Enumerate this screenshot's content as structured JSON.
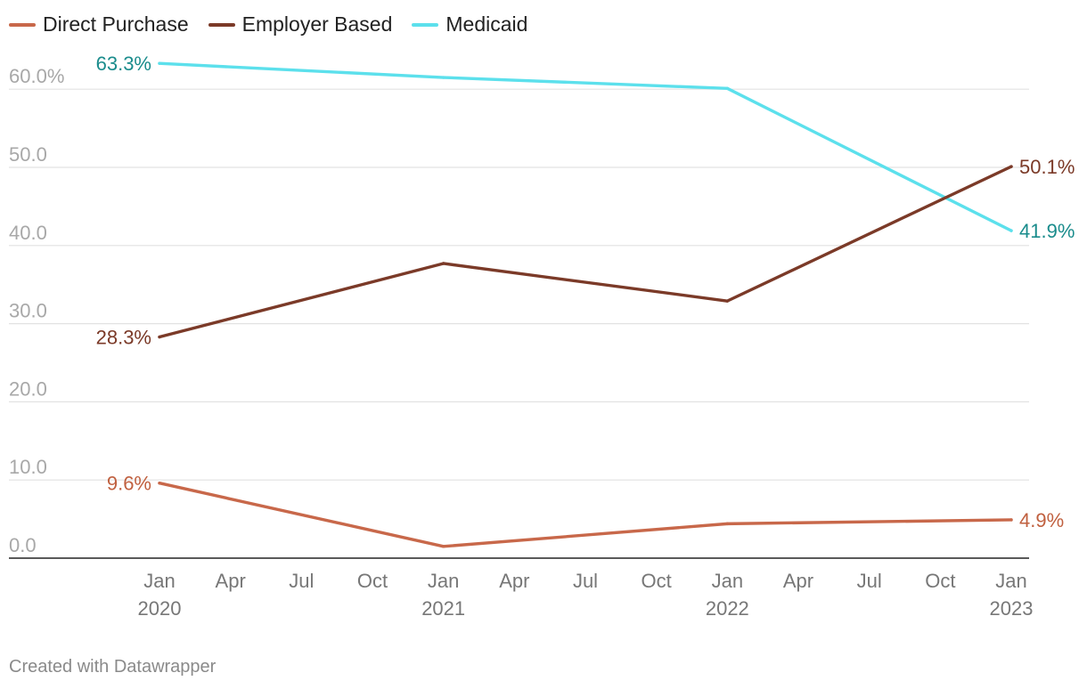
{
  "chart_data": {
    "type": "line",
    "title": "",
    "xlabel": "",
    "ylabel": "",
    "ylim": [
      0,
      65
    ],
    "y_ticks": [
      0,
      10,
      20,
      30,
      40,
      50,
      60
    ],
    "y_tick_labels": [
      "0.0",
      "10.0",
      "20.0",
      "30.0",
      "40.0",
      "50.0",
      "60.0%"
    ],
    "x": [
      2020,
      2021,
      2022,
      2023
    ],
    "x_tick_labels": [
      {
        "month": "Jan",
        "year": "2020"
      },
      {
        "month": "Apr",
        "year": ""
      },
      {
        "month": "Jul",
        "year": ""
      },
      {
        "month": "Oct",
        "year": ""
      },
      {
        "month": "Jan",
        "year": "2021"
      },
      {
        "month": "Apr",
        "year": ""
      },
      {
        "month": "Jul",
        "year": ""
      },
      {
        "month": "Oct",
        "year": ""
      },
      {
        "month": "Jan",
        "year": "2022"
      },
      {
        "month": "Apr",
        "year": ""
      },
      {
        "month": "Jul",
        "year": ""
      },
      {
        "month": "Oct",
        "year": ""
      },
      {
        "month": "Jan",
        "year": "2023"
      }
    ],
    "series": [
      {
        "name": "Direct Purchase",
        "color": "#c8684a",
        "label_color": "#c0603f",
        "values": [
          9.6,
          1.5,
          4.4,
          4.9
        ],
        "start_label": "9.6%",
        "end_label": "4.9%"
      },
      {
        "name": "Employer Based",
        "color": "#7b3a28",
        "label_color": "#7b3a28",
        "values": [
          28.3,
          37.7,
          32.9,
          50.1
        ],
        "start_label": "28.3%",
        "end_label": "50.1%"
      },
      {
        "name": "Medicaid",
        "color": "#5ce0ec",
        "label_color": "#1a8c8c",
        "values": [
          63.3,
          61.5,
          60.1,
          41.9
        ],
        "start_label": "63.3%",
        "end_label": "41.9%"
      }
    ],
    "legend_position": "top-left",
    "grid": true
  },
  "footer": {
    "credit": "Created with Datawrapper"
  }
}
